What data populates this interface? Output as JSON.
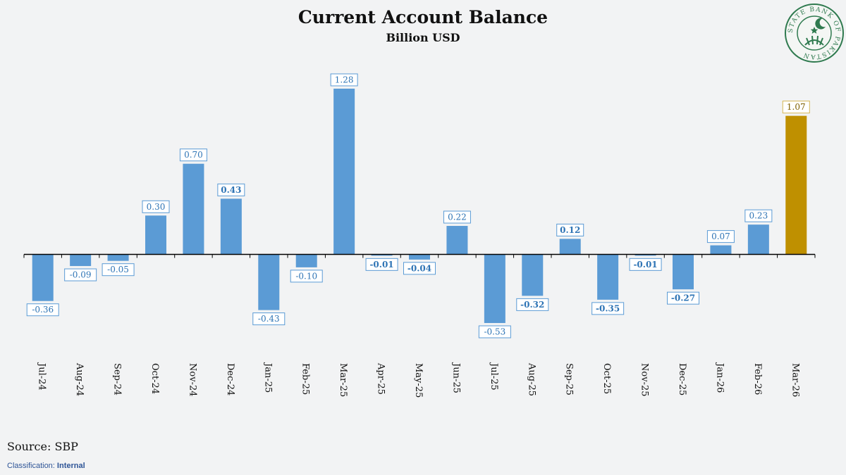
{
  "chart_data": {
    "type": "bar",
    "title": "Current Account Balance",
    "subtitle": "Billion USD",
    "categories": [
      "Jul-24",
      "Aug-24",
      "Sep-24",
      "Oct-24",
      "Nov-24",
      "Dec-24",
      "Jan-25",
      "Feb-25",
      "Mar-25",
      "Apr-25",
      "May-25",
      "Jun-25",
      "Jul-25",
      "Aug-25",
      "Sep-25",
      "Oct-25",
      "Nov-25",
      "Dec-25",
      "Jan-26",
      "Feb-26",
      "Mar-26"
    ],
    "values": [
      -0.36,
      -0.09,
      -0.05,
      0.3,
      0.7,
      0.43,
      -0.43,
      -0.1,
      1.28,
      -0.01,
      -0.04,
      0.22,
      -0.53,
      -0.32,
      0.12,
      -0.35,
      -0.01,
      -0.27,
      0.07,
      0.23,
      1.07
    ],
    "labels": [
      "-0.36",
      "-0.09",
      "-0.05",
      "0.30",
      "0.70",
      "0.43",
      "-0.43",
      "-0.10",
      "1.28",
      "-0.01",
      "-0.04",
      "0.22",
      "-0.53",
      "-0.32",
      "0.12",
      "-0.35",
      "-0.01",
      "-0.27",
      "0.07",
      "0.23",
      "1.07"
    ],
    "bold_labels": [
      false,
      false,
      false,
      false,
      false,
      true,
      false,
      false,
      false,
      true,
      true,
      false,
      false,
      true,
      true,
      true,
      true,
      true,
      false,
      false,
      false
    ],
    "highlight_index": 20,
    "colors": {
      "bar": "#5b9bd5",
      "highlight": "#bf9000",
      "label_border": "#5b9bd5",
      "label_text": "#2e74b5",
      "highlight_label_text": "#7f6000",
      "axis": "#000000"
    },
    "ylim": [
      -0.75,
      1.45
    ],
    "grid": false,
    "legend": "none"
  },
  "footer": {
    "source": "Source: SBP",
    "classification_label": "Classification:",
    "classification_value": "Internal"
  },
  "logo": {
    "text": "STATE BANK OF PAKISTAN",
    "icon": "state-bank-of-pakistan-seal-icon"
  }
}
